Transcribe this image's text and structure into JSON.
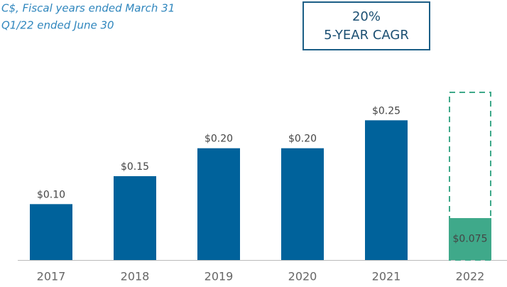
{
  "chart_data": {
    "type": "bar",
    "notes": [
      "C$, Fiscal years ended March 31",
      "Q1/22 ended June 30"
    ],
    "callout": [
      "20%",
      "5-YEAR CAGR"
    ],
    "categories": [
      "2017",
      "2018",
      "2019",
      "2020",
      "2021",
      "2022"
    ],
    "values": [
      0.1,
      0.15,
      0.2,
      0.2,
      0.25,
      0.075
    ],
    "value_labels": [
      "$0.10",
      "$0.15",
      "$0.20",
      "$0.20",
      "$0.25",
      "$0.075"
    ],
    "colors": [
      "#00629b",
      "#00629b",
      "#00629b",
      "#00629b",
      "#00629b",
      "#3fa98a"
    ],
    "projected_values": [
      null,
      null,
      null,
      null,
      null,
      0.3
    ],
    "projected_color": "#3fa98a",
    "ylim": [
      0,
      0.3
    ]
  }
}
